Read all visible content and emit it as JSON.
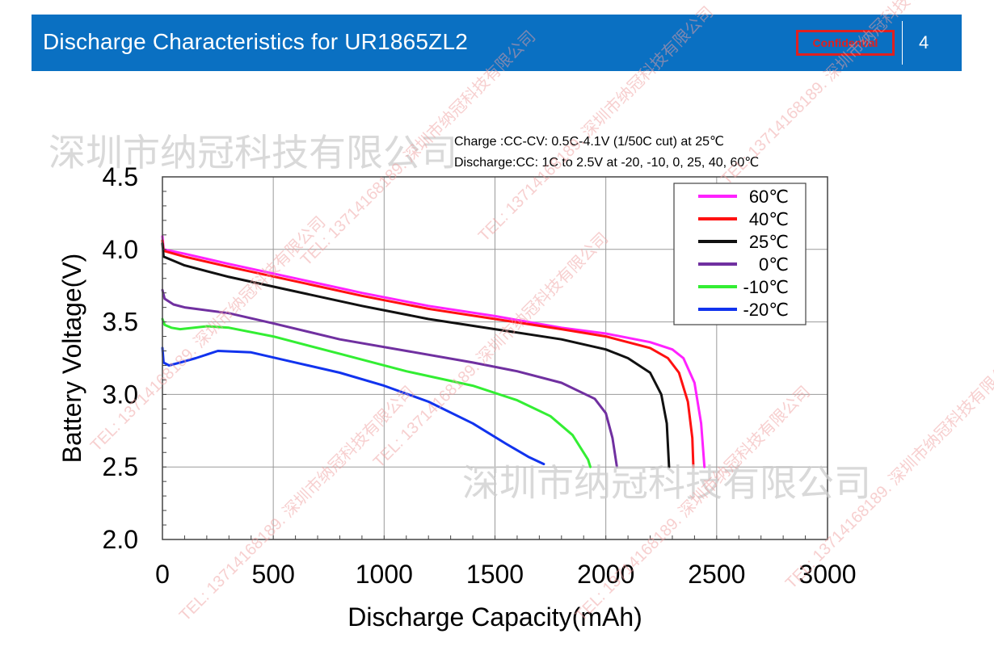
{
  "header": {
    "title": "Discharge Characteristics for UR1865ZL2",
    "confidential": "Confidential",
    "page_number": "4"
  },
  "watermark": {
    "company": "深圳市纳冠科技有限公司",
    "diagonal": "TEL: 13714168189. 深圳市纳冠科技有限公司"
  },
  "colors": {
    "header_bg": "#0a70c2",
    "confidential": "#e02020"
  },
  "chart_data": {
    "type": "line",
    "notes": [
      "Charge :CC-CV: 0.5C-4.1V (1/50C cut) at 25℃",
      "Discharge:CC: 1C to 2.5V at -20, -10, 0, 25, 40, 60℃"
    ],
    "xlabel": "Discharge Capacity(mAh)",
    "ylabel": "Battery Voltage(V)",
    "xlim": [
      0,
      3000
    ],
    "ylim": [
      2.0,
      4.5
    ],
    "xticks": [
      "0",
      "500",
      "1000",
      "1500",
      "2000",
      "2500",
      "3000"
    ],
    "yticks": [
      "2.0",
      "2.5",
      "3.0",
      "3.5",
      "4.0",
      "4.5"
    ],
    "grid": true,
    "legend_position": "top-right",
    "series": [
      {
        "name": "60℃",
        "color": "#ff22ff",
        "points": [
          [
            0,
            4.09
          ],
          [
            5,
            4.0
          ],
          [
            100,
            3.97
          ],
          [
            300,
            3.9
          ],
          [
            600,
            3.8
          ],
          [
            900,
            3.7
          ],
          [
            1200,
            3.61
          ],
          [
            1500,
            3.54
          ],
          [
            1800,
            3.46
          ],
          [
            2000,
            3.42
          ],
          [
            2200,
            3.36
          ],
          [
            2300,
            3.31
          ],
          [
            2350,
            3.25
          ],
          [
            2400,
            3.08
          ],
          [
            2430,
            2.8
          ],
          [
            2445,
            2.5
          ]
        ]
      },
      {
        "name": "40℃",
        "color": "#ff1111",
        "points": [
          [
            0,
            4.06
          ],
          [
            5,
            3.99
          ],
          [
            100,
            3.95
          ],
          [
            300,
            3.88
          ],
          [
            600,
            3.78
          ],
          [
            900,
            3.68
          ],
          [
            1200,
            3.59
          ],
          [
            1500,
            3.52
          ],
          [
            1800,
            3.45
          ],
          [
            2000,
            3.4
          ],
          [
            2200,
            3.32
          ],
          [
            2280,
            3.25
          ],
          [
            2330,
            3.15
          ],
          [
            2370,
            2.95
          ],
          [
            2390,
            2.7
          ],
          [
            2395,
            2.5
          ]
        ]
      },
      {
        "name": "25℃",
        "color": "#111111",
        "points": [
          [
            0,
            4.04
          ],
          [
            5,
            3.95
          ],
          [
            100,
            3.89
          ],
          [
            300,
            3.81
          ],
          [
            600,
            3.71
          ],
          [
            900,
            3.61
          ],
          [
            1200,
            3.52
          ],
          [
            1500,
            3.45
          ],
          [
            1800,
            3.38
          ],
          [
            2000,
            3.31
          ],
          [
            2100,
            3.25
          ],
          [
            2200,
            3.15
          ],
          [
            2250,
            3.0
          ],
          [
            2275,
            2.8
          ],
          [
            2285,
            2.5
          ]
        ]
      },
      {
        "name": "0℃",
        "color": "#7030a0",
        "points": [
          [
            0,
            3.72
          ],
          [
            10,
            3.66
          ],
          [
            50,
            3.62
          ],
          [
            100,
            3.6
          ],
          [
            300,
            3.56
          ],
          [
            500,
            3.49
          ],
          [
            800,
            3.38
          ],
          [
            1100,
            3.3
          ],
          [
            1400,
            3.22
          ],
          [
            1600,
            3.16
          ],
          [
            1800,
            3.08
          ],
          [
            1950,
            2.97
          ],
          [
            2000,
            2.87
          ],
          [
            2030,
            2.7
          ],
          [
            2050,
            2.5
          ]
        ]
      },
      {
        "name": "-10℃",
        "color": "#33ee33",
        "points": [
          [
            0,
            3.52
          ],
          [
            10,
            3.48
          ],
          [
            40,
            3.46
          ],
          [
            80,
            3.45
          ],
          [
            200,
            3.47
          ],
          [
            300,
            3.46
          ],
          [
            500,
            3.4
          ],
          [
            800,
            3.28
          ],
          [
            1100,
            3.16
          ],
          [
            1400,
            3.06
          ],
          [
            1600,
            2.96
          ],
          [
            1750,
            2.85
          ],
          [
            1850,
            2.72
          ],
          [
            1920,
            2.55
          ],
          [
            1930,
            2.5
          ]
        ]
      },
      {
        "name": "-20℃",
        "color": "#1133ee",
        "points": [
          [
            0,
            3.32
          ],
          [
            5,
            3.22
          ],
          [
            30,
            3.2
          ],
          [
            80,
            3.22
          ],
          [
            150,
            3.25
          ],
          [
            250,
            3.3
          ],
          [
            400,
            3.29
          ],
          [
            600,
            3.22
          ],
          [
            800,
            3.15
          ],
          [
            1000,
            3.06
          ],
          [
            1200,
            2.95
          ],
          [
            1400,
            2.8
          ],
          [
            1550,
            2.66
          ],
          [
            1650,
            2.57
          ],
          [
            1720,
            2.52
          ]
        ]
      }
    ]
  }
}
